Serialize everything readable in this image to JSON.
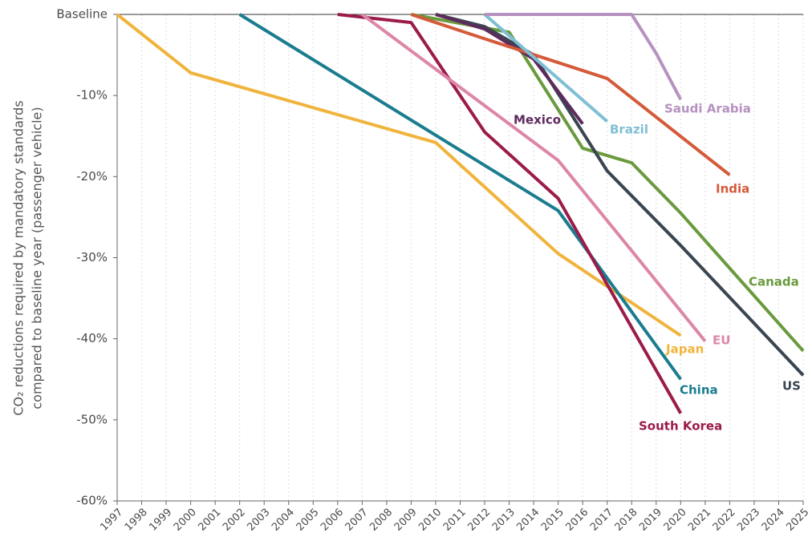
{
  "chart_data": {
    "type": "line",
    "ylabel": [
      "CO₂ reductions required by mandatory standards",
      "compared to baseline year (passenger vehicle)"
    ],
    "xlim": [
      1997,
      2025
    ],
    "xticks": [
      1997,
      1998,
      1999,
      2000,
      2001,
      2002,
      2003,
      2004,
      2005,
      2006,
      2007,
      2008,
      2009,
      2010,
      2011,
      2012,
      2013,
      2014,
      2015,
      2016,
      2017,
      2018,
      2019,
      2020,
      2021,
      2022,
      2023,
      2024,
      2025
    ],
    "ylim": [
      -60,
      0
    ],
    "yticks": [
      {
        "value": 0,
        "label": "Baseline"
      },
      {
        "value": -10,
        "label": "-10%"
      },
      {
        "value": -20,
        "label": "-20%"
      },
      {
        "value": -30,
        "label": "-30%"
      },
      {
        "value": -40,
        "label": "-40%"
      },
      {
        "value": -50,
        "label": "-50%"
      },
      {
        "value": -60,
        "label": "-60%"
      }
    ],
    "grid": "x",
    "series": [
      {
        "name": "Japan",
        "color": "#f0b43c",
        "x": [
          1997,
          2000,
          2010,
          2015,
          2020
        ],
        "values": [
          0,
          -7.2,
          -15.8,
          -29.5,
          -39.6
        ]
      },
      {
        "name": "China",
        "color": "#1a7d8f",
        "x": [
          2002,
          2015,
          2020
        ],
        "values": [
          0,
          -24.2,
          -45
        ]
      },
      {
        "name": "South Korea",
        "color": "#9b1b4a",
        "x": [
          2006,
          2009,
          2012,
          2015,
          2020
        ],
        "values": [
          0,
          -1,
          -14.5,
          -22.7,
          -49.2
        ]
      },
      {
        "name": "EU",
        "color": "#dc86a8",
        "x": [
          2007,
          2015,
          2021
        ],
        "values": [
          0,
          -18,
          -40.3
        ]
      },
      {
        "name": "Canada",
        "color": "#6a9a3e",
        "x": [
          2009,
          2013,
          2016,
          2018,
          2020,
          2025
        ],
        "values": [
          0,
          -2.2,
          -16.5,
          -18.3,
          -24.5,
          -41.5
        ]
      },
      {
        "name": "US",
        "color": "#3a4550",
        "x": [
          2010,
          2012,
          2014,
          2017,
          2020,
          2025
        ],
        "values": [
          0,
          -1.5,
          -5,
          -19.3,
          -28.5,
          -44.5
        ]
      },
      {
        "name": "Mexico",
        "color": "#5e2a5e",
        "x": [
          2010,
          2012,
          2014,
          2016
        ],
        "values": [
          0,
          -1.8,
          -5.5,
          -13.5
        ]
      },
      {
        "name": "India",
        "color": "#d45a3a",
        "x": [
          2009,
          2012,
          2017,
          2022
        ],
        "values": [
          0,
          -3,
          -7.9,
          -19.8
        ]
      },
      {
        "name": "Brazil",
        "color": "#7fbfd4",
        "x": [
          2012,
          2017
        ],
        "values": [
          0,
          -13.2
        ]
      },
      {
        "name": "Saudi Arabia",
        "color": "#b692c0",
        "x": [
          2012,
          2018,
          2019,
          2020
        ],
        "values": [
          0,
          0,
          -4.8,
          -10.5
        ]
      }
    ]
  }
}
